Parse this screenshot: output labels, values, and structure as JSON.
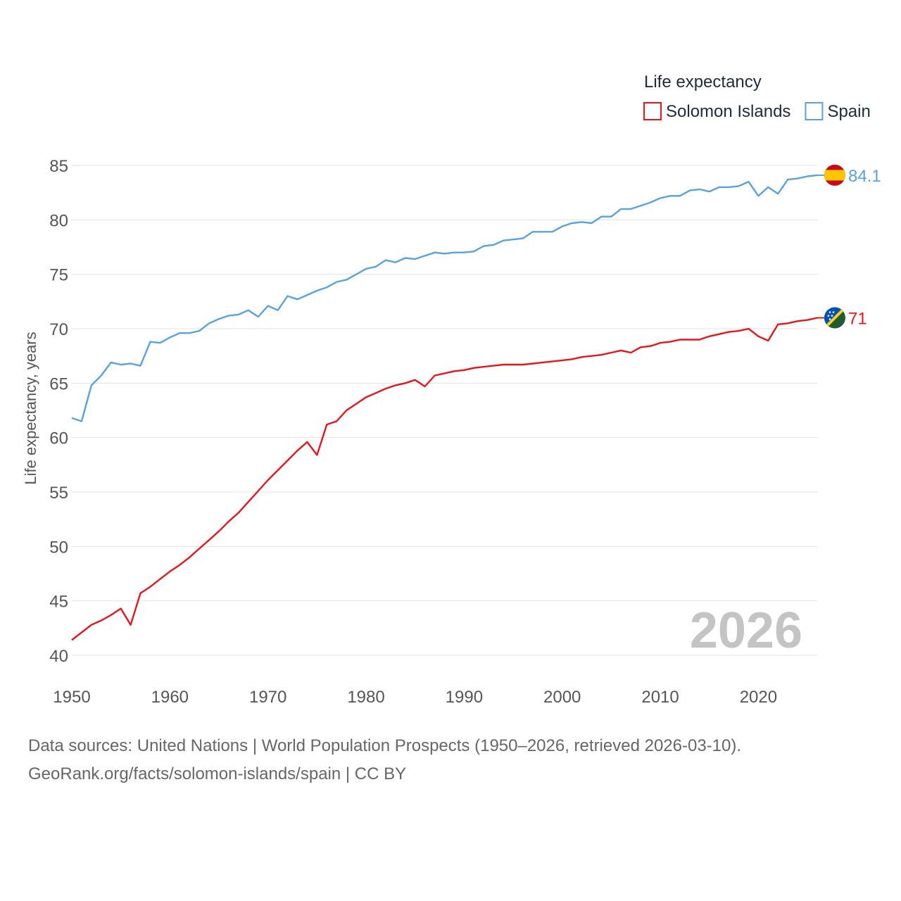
{
  "chart_data": {
    "type": "line",
    "title": "",
    "legend_title": "Life expectancy",
    "legend_position": "top-right",
    "xlabel": "",
    "ylabel": "Life expectancy, years",
    "xlim": [
      1950,
      2026
    ],
    "ylim": [
      40,
      85
    ],
    "x_ticks": [
      1950,
      1960,
      1970,
      1980,
      1990,
      2000,
      2010,
      2020
    ],
    "y_ticks": [
      40,
      45,
      50,
      55,
      60,
      65,
      70,
      75,
      80,
      85
    ],
    "grid": true,
    "current_year_label": "2026",
    "x": [
      1950,
      1951,
      1952,
      1953,
      1954,
      1955,
      1956,
      1957,
      1958,
      1959,
      1960,
      1961,
      1962,
      1963,
      1964,
      1965,
      1966,
      1967,
      1968,
      1969,
      1970,
      1971,
      1972,
      1973,
      1974,
      1975,
      1976,
      1977,
      1978,
      1979,
      1980,
      1981,
      1982,
      1983,
      1984,
      1985,
      1986,
      1987,
      1988,
      1989,
      1990,
      1991,
      1992,
      1993,
      1994,
      1995,
      1996,
      1997,
      1998,
      1999,
      2000,
      2001,
      2002,
      2003,
      2004,
      2005,
      2006,
      2007,
      2008,
      2009,
      2010,
      2011,
      2012,
      2013,
      2014,
      2015,
      2016,
      2017,
      2018,
      2019,
      2020,
      2021,
      2022,
      2023,
      2024,
      2025,
      2026
    ],
    "series": [
      {
        "name": "Solomon Islands",
        "color": "#e8141c",
        "flag": "solomon-islands-flag-icon",
        "end_label": "71",
        "values": [
          41.4,
          42.1,
          42.8,
          43.2,
          43.7,
          44.3,
          42.8,
          45.7,
          46.3,
          47.0,
          47.7,
          48.3,
          49.0,
          49.8,
          50.6,
          51.4,
          52.3,
          53.1,
          54.1,
          55.1,
          56.1,
          57.0,
          57.9,
          58.8,
          59.6,
          58.4,
          61.2,
          61.5,
          62.5,
          63.1,
          63.7,
          64.1,
          64.5,
          64.8,
          65.0,
          65.3,
          64.7,
          65.7,
          65.9,
          66.1,
          66.2,
          66.4,
          66.5,
          66.6,
          66.7,
          66.7,
          66.7,
          66.8,
          66.9,
          67.0,
          67.1,
          67.2,
          67.4,
          67.5,
          67.6,
          67.8,
          68.0,
          67.8,
          68.3,
          68.4,
          68.7,
          68.8,
          69.0,
          69.0,
          69.0,
          69.3,
          69.5,
          69.7,
          69.8,
          70.0,
          69.3,
          68.9,
          70.4,
          70.5,
          70.7,
          70.8,
          71.0
        ]
      },
      {
        "name": "Spain",
        "color": "#5aa1e2",
        "flag": "spain-flag-icon",
        "end_label": "84.1",
        "values": [
          61.8,
          61.5,
          64.8,
          65.7,
          66.9,
          66.7,
          66.8,
          66.6,
          68.8,
          68.7,
          69.2,
          69.6,
          69.6,
          69.8,
          70.5,
          70.9,
          71.2,
          71.3,
          71.7,
          71.1,
          72.1,
          71.7,
          73.0,
          72.7,
          73.1,
          73.5,
          73.8,
          74.3,
          74.5,
          75.0,
          75.5,
          75.7,
          76.3,
          76.1,
          76.5,
          76.4,
          76.7,
          77.0,
          76.9,
          77.0,
          77.0,
          77.1,
          77.6,
          77.7,
          78.1,
          78.2,
          78.3,
          78.9,
          78.9,
          78.9,
          79.4,
          79.7,
          79.8,
          79.7,
          80.3,
          80.3,
          81.0,
          81.0,
          81.3,
          81.6,
          82.0,
          82.2,
          82.2,
          82.7,
          82.8,
          82.6,
          83.0,
          83.0,
          83.1,
          83.5,
          82.2,
          83.0,
          82.4,
          83.7,
          83.8,
          84.0,
          84.1
        ]
      }
    ]
  },
  "footer": {
    "sources": "Data sources: United Nations | World Population Prospects (1950–2026, retrieved 2026-03-10).",
    "attribution": "GeoRank.org/facts/solomon-islands/spain | CC BY"
  }
}
